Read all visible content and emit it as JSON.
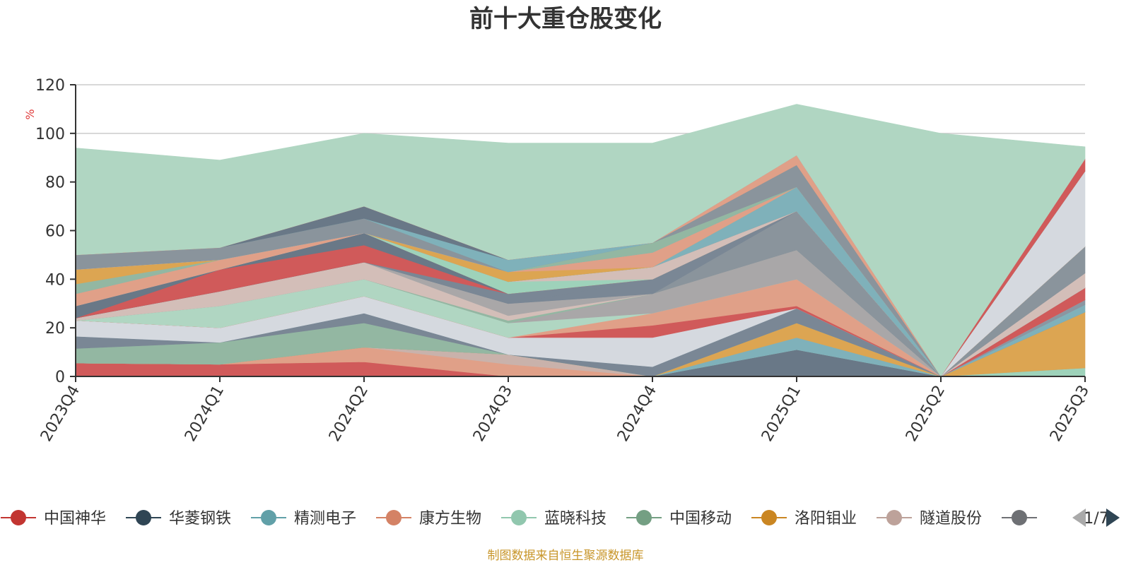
{
  "chart_data": {
    "type": "area",
    "title": "前十大重仓股变化",
    "ylabel": "%",
    "ylim": [
      0,
      120
    ],
    "yticks": [
      0,
      20,
      40,
      60,
      80,
      100,
      120
    ],
    "categories": [
      "2023Q4",
      "2024Q1",
      "2024Q2",
      "2024Q3",
      "2024Q4",
      "2025Q1",
      "2025Q2",
      "2025Q3"
    ],
    "series": [
      {
        "name": "中国神华",
        "color": "#d05a5a",
        "values": [
          5.5,
          5,
          6,
          0,
          0,
          0,
          0,
          0
        ]
      },
      {
        "name": "康方生物",
        "color": "#e0a088",
        "values": [
          0,
          0,
          6,
          5,
          0,
          0,
          0,
          0
        ]
      },
      {
        "name": "隧道股份",
        "color": "#c9b2ab",
        "values": [
          0,
          0,
          0,
          4,
          0,
          0,
          0,
          0
        ]
      },
      {
        "name": "华菱钢铁",
        "color": "#697887",
        "values": [
          0,
          0,
          0,
          0,
          0,
          11,
          0,
          0
        ]
      },
      {
        "name": "蓝晓科技",
        "color": "#9ed2ba",
        "values": [
          0,
          0,
          0,
          0,
          0,
          0,
          0,
          3.5
        ]
      },
      {
        "name": "精测电子",
        "color": "#7fb1ba",
        "values": [
          0,
          0,
          0,
          0,
          0,
          5,
          0,
          0
        ]
      },
      {
        "name": "洛阳钼业",
        "color": "#dca552",
        "values": [
          0,
          0,
          0,
          0,
          0,
          6,
          0,
          23
        ]
      },
      {
        "name": "中国移动",
        "color": "#93b7a2",
        "values": [
          6,
          9,
          10,
          0,
          0,
          0,
          0,
          0
        ]
      },
      {
        "name": "华菱钢铁",
        "color": "#7a8795",
        "values": [
          5,
          0,
          4,
          0,
          4,
          6,
          0,
          0
        ]
      },
      {
        "name": "精测电子",
        "color": "#7fb1ba",
        "values": [
          0,
          0,
          0,
          0,
          0,
          0,
          0,
          3
        ]
      },
      {
        "name": "华菱钢铁",
        "color": "#8b96a1",
        "values": [
          0,
          0,
          0,
          0,
          0,
          0,
          0,
          2
        ]
      },
      {
        "name": "隧道股份",
        "color": "#d5d9df",
        "values": [
          6.5,
          6,
          7,
          7,
          12,
          0,
          0,
          0
        ]
      },
      {
        "name": "中国神华",
        "color": "#d05a5a",
        "values": [
          0,
          0,
          0,
          0,
          5,
          1,
          0,
          0
        ]
      },
      {
        "name": "中国神华",
        "color": "#d05a5a",
        "values": [
          0,
          0,
          0,
          0,
          0,
          0,
          0,
          5
        ]
      },
      {
        "name": "康方生物",
        "color": "#e0a088",
        "values": [
          0,
          0,
          0,
          0,
          5,
          11,
          0,
          0
        ]
      },
      {
        "name": "蓝晓科技",
        "color": "#b0d6c2",
        "values": [
          0,
          9,
          7,
          6,
          0,
          0,
          0,
          0
        ]
      },
      {
        "name": "隧道股份",
        "color": "#a9a7a8",
        "values": [
          0,
          0,
          0,
          0,
          8,
          12,
          0,
          0
        ]
      },
      {
        "name": "中国移动",
        "color": "#93b7a2",
        "values": [
          0,
          0,
          0,
          1,
          0,
          0,
          0,
          0
        ]
      },
      {
        "name": "隧道股份",
        "color": "#d3beb8",
        "values": [
          1,
          6,
          7,
          2,
          0,
          0,
          0,
          0
        ]
      },
      {
        "name": "隧道股份",
        "color": "#a9a7a8",
        "values": [
          0,
          0,
          0,
          5,
          0,
          0,
          0,
          0
        ]
      },
      {
        "name": "华菱钢铁",
        "color": "#8a949c",
        "values": [
          0,
          0,
          0,
          0,
          0,
          16,
          0,
          0
        ]
      },
      {
        "name": "华菱钢铁",
        "color": "#7a8795",
        "values": [
          0,
          0,
          0,
          0,
          6,
          0,
          0,
          0
        ]
      },
      {
        "name": "华菱钢铁",
        "color": "#7a8795",
        "values": [
          0,
          0,
          0,
          4,
          0,
          0,
          0,
          0
        ]
      },
      {
        "name": "中国神华",
        "color": "#d05a5a",
        "values": [
          0,
          9,
          7,
          0,
          0,
          0,
          0,
          0
        ]
      },
      {
        "name": "华菱钢铁",
        "color": "#697887",
        "values": [
          5,
          0,
          5,
          0,
          0,
          0,
          0,
          0
        ]
      },
      {
        "name": "中国神华",
        "color": "#d05a5a",
        "values": [
          0,
          0,
          0,
          0,
          0,
          0,
          0,
          0
        ]
      },
      {
        "name": "蓝晓科技",
        "color": "#9ed2ba",
        "values": [
          0,
          0,
          0,
          5,
          0,
          0,
          0,
          0
        ]
      },
      {
        "name": "隧道股份",
        "color": "#d3beb8",
        "values": [
          0,
          0,
          0,
          0,
          5,
          0,
          0,
          0
        ]
      },
      {
        "name": "隧道股份",
        "color": "#d3beb8",
        "values": [
          0,
          0,
          0,
          0,
          0,
          0,
          0,
          6
        ]
      },
      {
        "name": "华菱钢铁",
        "color": "#8a949c",
        "values": [
          0,
          0,
          0,
          0,
          0,
          0,
          0,
          11
        ]
      },
      {
        "name": "康方生物",
        "color": "#e0a088",
        "values": [
          5,
          4,
          0,
          0,
          0,
          0,
          0,
          0
        ]
      },
      {
        "name": "精测电子",
        "color": "#7fb1ba",
        "values": [
          0,
          0,
          0,
          0,
          0,
          10,
          0,
          0
        ]
      },
      {
        "name": "中国移动",
        "color": "#93b7a2",
        "values": [
          4,
          0,
          0,
          0,
          0,
          0,
          0,
          0
        ]
      },
      {
        "name": "洛阳钼业",
        "color": "#dca552",
        "values": [
          6,
          0,
          0,
          4,
          0,
          0,
          0,
          0
        ]
      },
      {
        "name": "康方生物",
        "color": "#e0a088",
        "values": [
          0,
          0,
          0,
          0,
          6,
          0,
          0,
          0
        ]
      },
      {
        "name": "隧道股份",
        "color": "#d5d9df",
        "values": [
          0,
          0,
          0,
          0,
          0,
          0,
          0,
          31
        ]
      },
      {
        "name": "华菱钢铁",
        "color": "#8a949c",
        "values": [
          6,
          5,
          6,
          0,
          0,
          0,
          0,
          0
        ]
      },
      {
        "name": "中国移动",
        "color": "#93b7a2",
        "values": [
          0,
          0,
          0,
          0,
          4,
          0,
          0,
          0
        ]
      },
      {
        "name": "华菱钢铁",
        "color": "#8a949c",
        "values": [
          0,
          0,
          0,
          0,
          0,
          9,
          0,
          0
        ]
      },
      {
        "name": "精测电子",
        "color": "#7fb1ba",
        "values": [
          0,
          0,
          0,
          5,
          0,
          0,
          0,
          0
        ]
      },
      {
        "name": "华菱钢铁",
        "color": "#697887",
        "values": [
          0,
          0,
          5,
          0,
          0,
          0,
          0,
          0
        ]
      },
      {
        "name": "康方生物",
        "color": "#e0a088",
        "values": [
          0,
          0,
          0,
          0,
          0,
          4,
          0,
          0
        ]
      },
      {
        "name": "中国神华",
        "color": "#d05a5a",
        "values": [
          0,
          0,
          0,
          0,
          0,
          0,
          0,
          5
        ]
      },
      {
        "name": "蓝晓科技",
        "color": "#b0d6c2",
        "values": [
          44,
          36,
          30,
          48,
          41,
          21,
          100,
          5
        ]
      }
    ],
    "legend": {
      "position": "bottom",
      "items": [
        {
          "name": "中国神华",
          "color": "#c23531"
        },
        {
          "name": "华菱钢铁",
          "color": "#2f4554"
        },
        {
          "name": "精测电子",
          "color": "#61a0a8"
        },
        {
          "name": "康方生物",
          "color": "#d48265"
        },
        {
          "name": "蓝晓科技",
          "color": "#91c7ae"
        },
        {
          "name": "中国移动",
          "color": "#749f83"
        },
        {
          "name": "洛阳钼业",
          "color": "#ca8622"
        },
        {
          "name": "隧道股份",
          "color": "#bda29a"
        },
        {
          "name": "",
          "color": "#6e7074"
        }
      ],
      "page_label": "1/7"
    }
  },
  "source_note": "制图数据来自恒生聚源数据库",
  "colors": {
    "unit_label": "#e03c3c",
    "source_note": "#c8962a",
    "pager_active": "#2f4554",
    "pager_inactive": "#aaaaaa"
  }
}
